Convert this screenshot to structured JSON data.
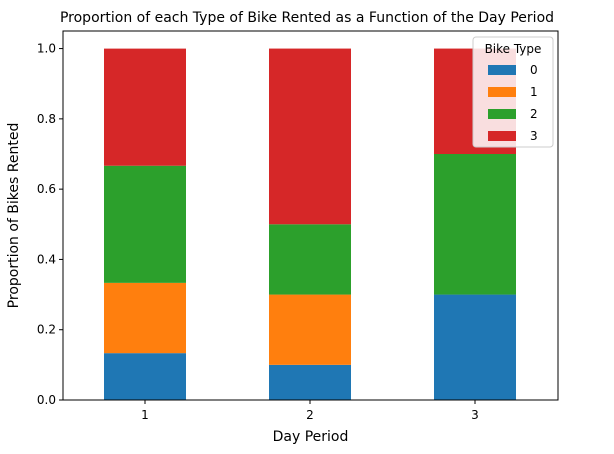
{
  "chart_data": {
    "type": "bar",
    "stacked": true,
    "title": "Proportion of each Type of Bike Rented as a Function of the Day Period",
    "xlabel": "Day Period",
    "ylabel": "Proportion of Bikes Rented",
    "categories": [
      "1",
      "2",
      "3"
    ],
    "ylim": [
      0,
      1.05
    ],
    "yticks": [
      "0.0",
      "0.2",
      "0.4",
      "0.6",
      "0.8",
      "1.0"
    ],
    "grid": false,
    "legend": {
      "title": "Bike Type",
      "placement": "top-right"
    },
    "series": [
      {
        "name": "0",
        "color": "#1f77b4",
        "values": [
          0.1333,
          0.1,
          0.3
        ]
      },
      {
        "name": "1",
        "color": "#ff7f0e",
        "values": [
          0.2,
          0.2,
          0.0
        ]
      },
      {
        "name": "2",
        "color": "#2ca02c",
        "values": [
          0.3333,
          0.2,
          0.4
        ]
      },
      {
        "name": "3",
        "color": "#d62728",
        "values": [
          0.3333,
          0.5,
          0.3
        ]
      }
    ]
  }
}
